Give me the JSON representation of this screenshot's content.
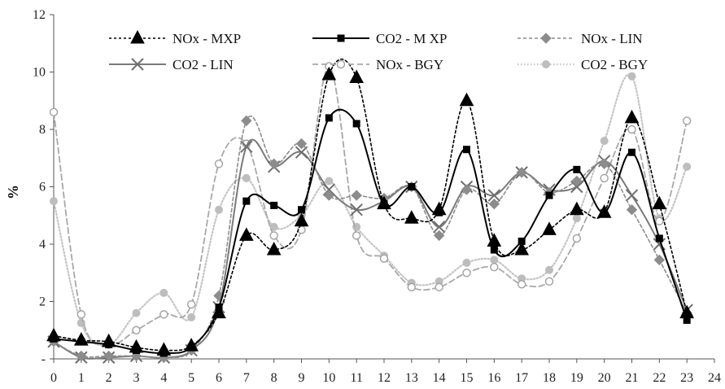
{
  "chart_data": {
    "type": "line",
    "title": "",
    "xlabel": "",
    "ylabel": "%",
    "xlim": [
      0,
      24
    ],
    "ylim": [
      0,
      12
    ],
    "x_ticks": [
      "0",
      "1",
      "2",
      "3",
      "4",
      "5",
      "6",
      "7",
      "8",
      "9",
      "10",
      "11",
      "12",
      "13",
      "14",
      "15",
      "16",
      "17",
      "18",
      "19",
      "20",
      "21",
      "22",
      "23",
      "24"
    ],
    "y_ticks": [
      {
        "value": 0,
        "label": "-"
      },
      {
        "value": 2,
        "label": "2"
      },
      {
        "value": 4,
        "label": "4"
      },
      {
        "value": 6,
        "label": "6"
      },
      {
        "value": 8,
        "label": "8"
      },
      {
        "value": 10,
        "label": "10"
      },
      {
        "value": 12,
        "label": "12"
      }
    ],
    "grid": false,
    "legend_position": "top",
    "x": [
      0,
      1,
      2,
      3,
      4,
      5,
      6,
      7,
      8,
      9,
      10,
      11,
      12,
      13,
      14,
      15,
      16,
      17,
      18,
      19,
      20,
      21,
      22,
      23
    ],
    "series": [
      {
        "name": "NOx - MXP",
        "color": "#000000",
        "dash": "3,3",
        "width": 1.6,
        "marker": "triangle",
        "marker_fill": "#000000",
        "marker_stroke": "#000000",
        "values": [
          0.8,
          0.65,
          0.6,
          0.4,
          0.3,
          0.45,
          1.6,
          4.3,
          3.8,
          4.8,
          9.9,
          9.8,
          5.4,
          4.9,
          5.2,
          9.0,
          4.1,
          3.8,
          4.5,
          5.2,
          5.1,
          8.4,
          5.4,
          1.6
        ]
      },
      {
        "name": "CO2 - M XP",
        "color": "#000000",
        "dash": "",
        "width": 2,
        "marker": "square",
        "marker_fill": "#000000",
        "marker_stroke": "#000000",
        "values": [
          0.7,
          0.6,
          0.5,
          0.3,
          0.2,
          0.4,
          1.8,
          5.5,
          5.35,
          5.2,
          8.4,
          8.2,
          5.4,
          6.0,
          5.1,
          7.3,
          3.8,
          4.1,
          5.7,
          6.6,
          5.1,
          7.2,
          4.2,
          1.35
        ]
      },
      {
        "name": "NOx - LIN",
        "color": "#8c8c8c",
        "dash": "4,3",
        "width": 1.6,
        "marker": "diamond",
        "marker_fill": "#8c8c8c",
        "marker_stroke": "#8c8c8c",
        "values": [
          0.6,
          0.1,
          0.1,
          0.1,
          0.05,
          0.3,
          2.2,
          8.3,
          6.8,
          7.5,
          5.7,
          5.7,
          5.6,
          6.0,
          4.3,
          5.9,
          5.4,
          6.5,
          5.8,
          6.2,
          6.8,
          5.2,
          3.45,
          1.6
        ]
      },
      {
        "name": "CO2 - LIN",
        "color": "#7a7a7a",
        "dash": "",
        "width": 2,
        "marker": "x",
        "marker_fill": "none",
        "marker_stroke": "#6e6e6e",
        "values": [
          0.6,
          0.05,
          0.05,
          0.1,
          0.05,
          0.3,
          1.8,
          7.4,
          6.7,
          7.2,
          5.9,
          5.2,
          5.5,
          6.0,
          4.6,
          6.0,
          5.7,
          6.5,
          5.9,
          6.0,
          6.9,
          5.7,
          4.0,
          1.7
        ]
      },
      {
        "name": "NOx - BGY",
        "color": "#a8a8a8",
        "dash": "7,4",
        "width": 1.8,
        "marker": "circle-open",
        "marker_fill": "#ffffff",
        "marker_stroke": "#a0a0a0",
        "values": [
          8.6,
          1.55,
          0.5,
          1.0,
          1.55,
          1.9,
          6.8,
          7.5,
          4.3,
          4.5,
          10.2,
          4.3,
          3.5,
          2.5,
          2.5,
          3.0,
          3.2,
          2.6,
          2.7,
          4.2,
          6.3,
          8.0,
          4.8,
          8.3
        ]
      },
      {
        "name": "CO2 - BGY",
        "color": "#c4c4c4",
        "dash": "1.5,2.5",
        "width": 2.2,
        "marker": "circle",
        "marker_fill": "#bdbdbd",
        "marker_stroke": "#bdbdbd",
        "values": [
          5.5,
          1.25,
          0.5,
          1.6,
          2.3,
          1.45,
          5.2,
          6.3,
          4.6,
          5.0,
          6.2,
          4.6,
          3.6,
          2.65,
          2.7,
          3.35,
          3.45,
          2.8,
          3.1,
          4.9,
          7.6,
          9.85,
          4.9,
          6.7
        ]
      }
    ]
  }
}
